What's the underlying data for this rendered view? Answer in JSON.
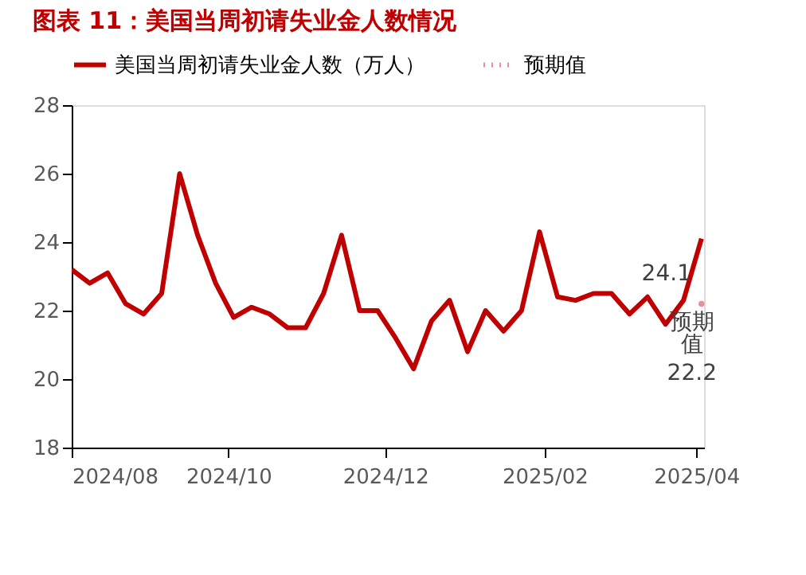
{
  "chart_data": {
    "type": "line",
    "title": "图表 11：美国当周初请失业金人数情况",
    "x": [
      "2024-08-01",
      "2024-08-08",
      "2024-08-15",
      "2024-08-22",
      "2024-08-29",
      "2024-09-05",
      "2024-09-12",
      "2024-09-19",
      "2024-09-26",
      "2024-10-03",
      "2024-10-10",
      "2024-10-17",
      "2024-10-24",
      "2024-10-31",
      "2024-11-07",
      "2024-11-14",
      "2024-11-21",
      "2024-11-28",
      "2024-12-05",
      "2024-12-12",
      "2024-12-19",
      "2024-12-26",
      "2025-01-02",
      "2025-01-09",
      "2025-01-16",
      "2025-01-23",
      "2025-01-30",
      "2025-02-06",
      "2025-02-13",
      "2025-02-20",
      "2025-02-27",
      "2025-03-06",
      "2025-03-13",
      "2025-03-20",
      "2025-03-27",
      "2025-04-03"
    ],
    "series": [
      {
        "name": "美国当周初请失业金人数（万人）",
        "color": "#c00000",
        "line_style": "solid",
        "values": [
          23.2,
          22.8,
          23.1,
          22.2,
          21.9,
          22.5,
          26.0,
          24.2,
          22.8,
          21.8,
          22.1,
          21.9,
          21.5,
          21.5,
          22.5,
          24.2,
          22.0,
          22.0,
          21.2,
          20.3,
          21.7,
          22.3,
          20.8,
          22.0,
          21.4,
          22.0,
          24.3,
          22.4,
          22.3,
          22.5,
          22.5,
          21.9,
          22.4,
          21.6,
          22.3,
          24.1
        ],
        "value_labels": [
          null,
          null,
          null,
          null,
          null,
          null,
          null,
          null,
          null,
          null,
          null,
          null,
          null,
          null,
          null,
          null,
          null,
          null,
          null,
          null,
          null,
          null,
          null,
          null,
          null,
          null,
          null,
          null,
          null,
          null,
          null,
          null,
          null,
          null,
          null,
          "24.1"
        ]
      },
      {
        "name": "预期值",
        "color": "#e8909b",
        "line_style": "dotted",
        "marker": "circle",
        "x": [
          "2025-04-03"
        ],
        "values": [
          22.2
        ],
        "value_labels": [
          "22.2"
        ]
      }
    ],
    "annotations": [
      {
        "text": "预期值",
        "x": "2025-04-03",
        "y": 22.2
      }
    ],
    "xlim": [
      "2024-08-01",
      "2025-04-04"
    ],
    "xticks": [
      {
        "value": "2024-08-01",
        "label": "2024/08"
      },
      {
        "value": "2024-10-01",
        "label": "2024/10"
      },
      {
        "value": "2024-12-01",
        "label": "2024/12"
      },
      {
        "value": "2025-02-01",
        "label": "2025/02"
      },
      {
        "value": "2025-04-01",
        "label": "2025/04"
      }
    ],
    "ylim": [
      18,
      28
    ],
    "yticks": [
      18,
      20,
      22,
      24,
      26,
      28
    ],
    "grid": false,
    "legend": "top"
  }
}
